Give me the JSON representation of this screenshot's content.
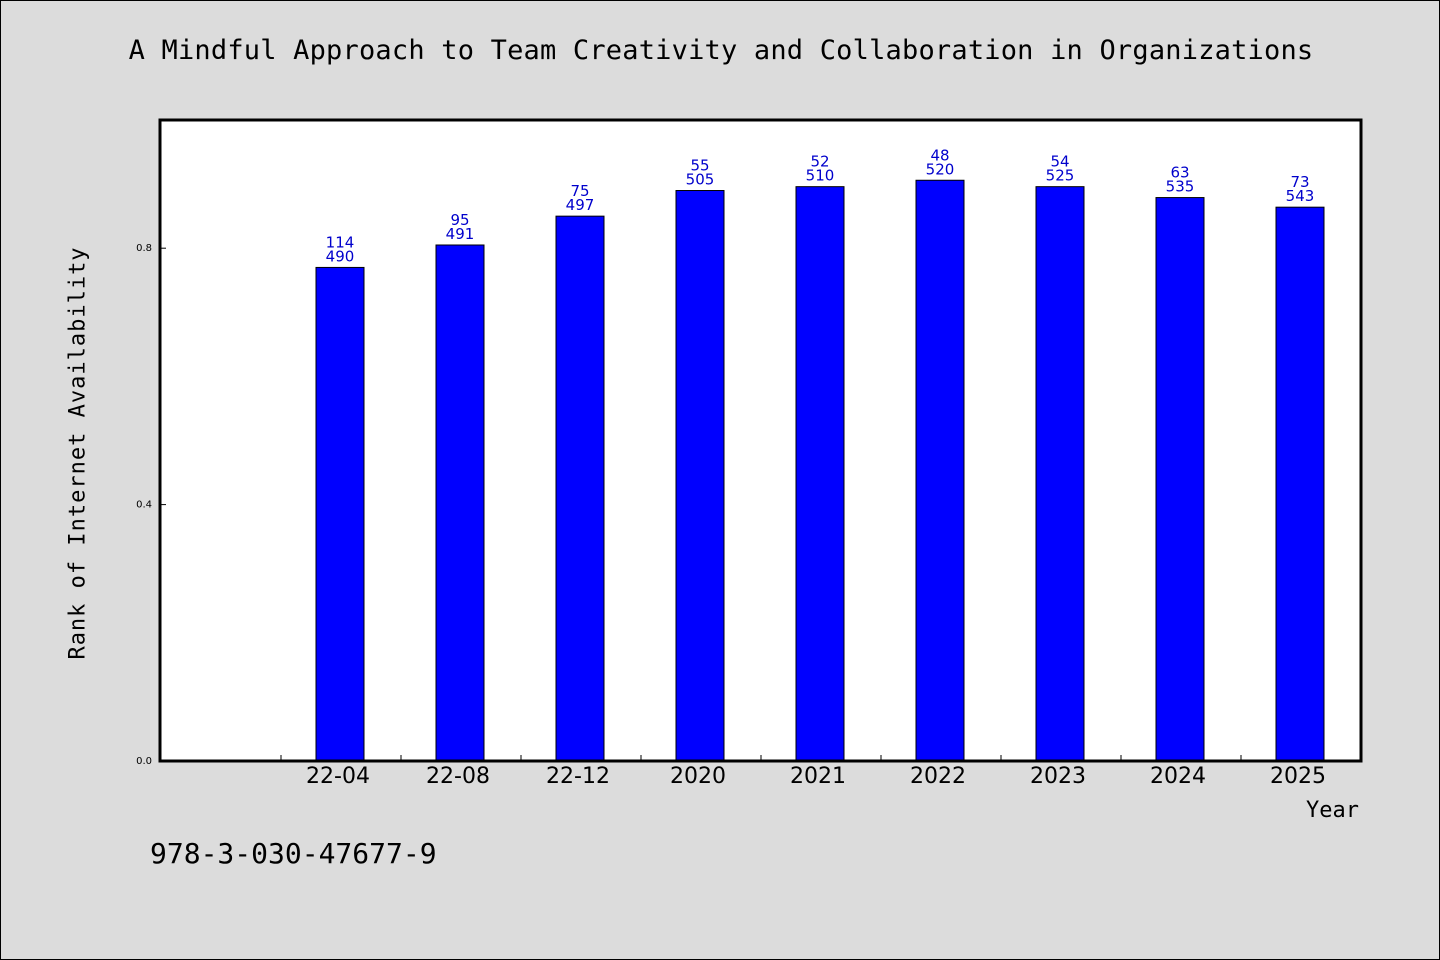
{
  "title": "A Mindful Approach to Team Creativity and Collaboration in Organizations",
  "footer_text": "978-3-030-47677-9",
  "colors": {
    "background": "#dcdcdc",
    "plot_area": "#ffffff",
    "bar_fill": "#0000ff",
    "data_label": "#0000cc"
  },
  "chart_data": {
    "type": "bar",
    "xlabel": "Year",
    "ylabel": "Rank of Internet Availability",
    "ylim": [
      0,
      1.0
    ],
    "yticks": [
      "0.0",
      "0.4",
      "0.8"
    ],
    "grid": false,
    "legend": "none",
    "categories": [
      "22-04",
      "22-08",
      "22-12",
      "2020",
      "2021",
      "2022",
      "2023",
      "2024",
      "2025"
    ],
    "values": [
      0.77,
      0.805,
      0.85,
      0.89,
      0.896,
      0.906,
      0.896,
      0.879,
      0.864
    ],
    "label_top": [
      "114",
      "95",
      "75",
      "55",
      "52",
      "48",
      "54",
      "63",
      "73"
    ],
    "label_bottom": [
      "490",
      "491",
      "497",
      "505",
      "510",
      "520",
      "525",
      "535",
      "543"
    ]
  }
}
